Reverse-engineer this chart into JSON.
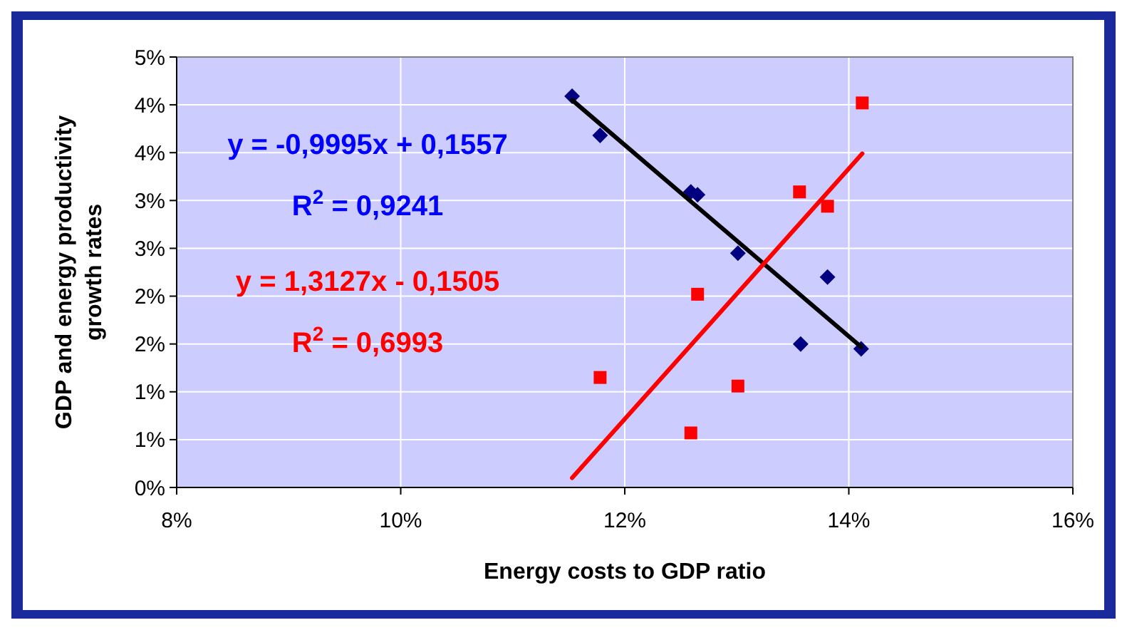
{
  "chart_data": {
    "type": "scatter",
    "xlabel": "Energy costs to GDP ratio",
    "ylabel": "GDP and energy productivity growth rates",
    "xlim": [
      8,
      16
    ],
    "xticks": [
      {
        "value": 8,
        "label": "8%"
      },
      {
        "value": 10,
        "label": "10%"
      },
      {
        "value": 12,
        "label": "12%"
      },
      {
        "value": 14,
        "label": "14%"
      },
      {
        "value": 16,
        "label": "16%"
      }
    ],
    "ylim": [
      0,
      4.5
    ],
    "yticks": [
      {
        "value": 0,
        "label": "0%"
      },
      {
        "value": 0.5,
        "label": "1%"
      },
      {
        "value": 1,
        "label": "1%"
      },
      {
        "value": 1.5,
        "label": "2%"
      },
      {
        "value": 2,
        "label": "2%"
      },
      {
        "value": 2.5,
        "label": "3%"
      },
      {
        "value": 3,
        "label": "3%"
      },
      {
        "value": 3.5,
        "label": "4%"
      },
      {
        "value": 4,
        "label": "4%"
      },
      {
        "value": 4.5,
        "label": "5%"
      }
    ],
    "grid": true,
    "series": [
      {
        "marker": "diamond",
        "color": "#000080",
        "x": [
          11.53,
          11.78,
          12.59,
          12.65,
          13.01,
          13.81,
          13.57,
          14.11
        ],
        "values": [
          4.09,
          3.68,
          3.09,
          3.06,
          2.45,
          2.2,
          1.5,
          1.45
        ]
      },
      {
        "marker": "square",
        "color": "#ff0000",
        "x": [
          14.12,
          13.56,
          13.81,
          12.65,
          11.78,
          13.01,
          12.59
        ],
        "values": [
          4.02,
          3.09,
          2.94,
          2.02,
          1.15,
          1.06,
          0.57
        ]
      },
      {
        "type": "line",
        "marker": "none",
        "color": "#000000",
        "x": [
          11.53,
          14.11
        ],
        "values": [
          4.05,
          1.47
        ]
      },
      {
        "type": "line",
        "marker": "none",
        "color": "#ff0000",
        "x": [
          11.53,
          14.12
        ],
        "values": [
          0.1,
          3.49
        ]
      }
    ],
    "annotations": [
      "y = -0,9995x + 0,1557",
      "R$^{2}$ = 0,9241",
      "y = 1,3127x - 0,1505",
      "R$^{2}$ = 0,6993"
    ]
  }
}
